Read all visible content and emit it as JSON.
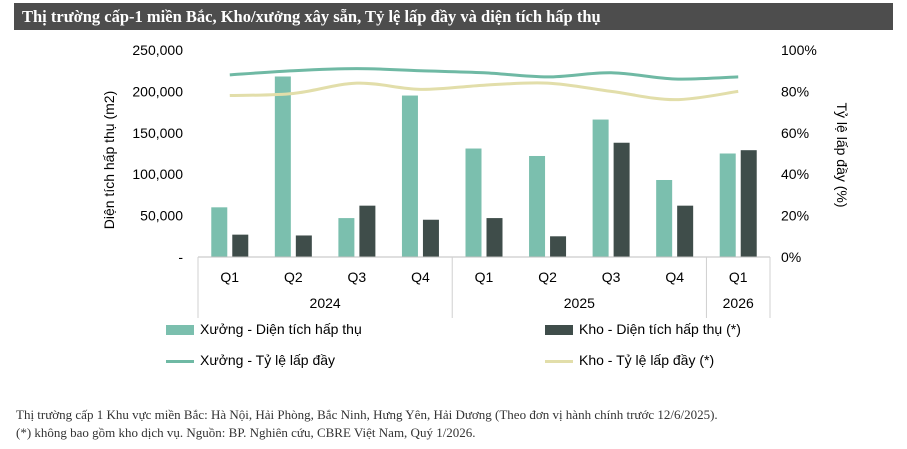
{
  "header": {
    "title": "Thị trường cấp-1 miền Bắc, Kho/xưởng xây sẵn, Tỷ lệ lấp đầy và diện tích hấp thụ"
  },
  "chart_data": {
    "type": "bar",
    "categories": [
      "Q1",
      "Q2",
      "Q3",
      "Q4",
      "Q1",
      "Q2",
      "Q3",
      "Q4",
      "Q1"
    ],
    "groups": [
      {
        "label": "2024",
        "span": 4
      },
      {
        "label": "2025",
        "span": 4
      },
      {
        "label": "2026",
        "span": 1
      }
    ],
    "series": [
      {
        "name": "Xưởng - Diện tích hấp thụ",
        "kind": "bar",
        "axis": "left",
        "color": "#7bbfae",
        "values": [
          60000,
          218000,
          47000,
          195000,
          131000,
          122000,
          166000,
          93000,
          125000
        ]
      },
      {
        "name": "Kho - Diện tích hấp thụ (*)",
        "kind": "bar",
        "axis": "left",
        "color": "#3f4d4a",
        "values": [
          27000,
          26000,
          62000,
          45000,
          47000,
          25000,
          138000,
          62000,
          129000
        ]
      },
      {
        "name": "Xưởng - Tỷ lệ lấp đầy",
        "kind": "line",
        "axis": "right",
        "color": "#6fb9a4",
        "values": [
          88,
          90,
          91,
          90,
          89,
          87,
          89,
          86,
          87
        ]
      },
      {
        "name": "Kho - Tỷ lệ lấp đầy (*)",
        "kind": "line",
        "axis": "right",
        "color": "#e2deaa",
        "values": [
          78,
          79,
          84,
          81,
          83,
          84,
          80,
          76,
          80
        ]
      }
    ],
    "ylabel_left": "Diện tích hấp thụ (m2)",
    "ylabel_right": "Tỷ lệ lấp đầy (%)",
    "ylim_left": [
      0,
      250000
    ],
    "ylim_right": [
      0,
      100
    ],
    "yticks_left": [
      "-",
      "50,000",
      "100,000",
      "150,000",
      "200,000",
      "250,000"
    ],
    "yticks_right": [
      "0%",
      "20%",
      "40%",
      "60%",
      "80%",
      "100%"
    ],
    "grid": false,
    "legend_position": "bottom"
  },
  "legend": {
    "items": [
      "Xưởng - Diện tích hấp thụ",
      "Kho - Diện tích hấp thụ (*)",
      "Xưởng - Tỷ lệ lấp đầy",
      "Kho - Tỷ lệ lấp đầy (*)"
    ]
  },
  "footnote": {
    "line1": "Thị trường cấp 1 Khu vực miền Bắc: Hà Nội, Hải Phòng, Bắc Ninh, Hưng Yên, Hải Dương (Theo đơn vị hành chính trước 12/6/2025).",
    "line2": "(*) không bao gồm kho dịch vụ. Nguồn: BP. Nghiên cứu, CBRE Việt Nam, Quý 1/2026."
  }
}
